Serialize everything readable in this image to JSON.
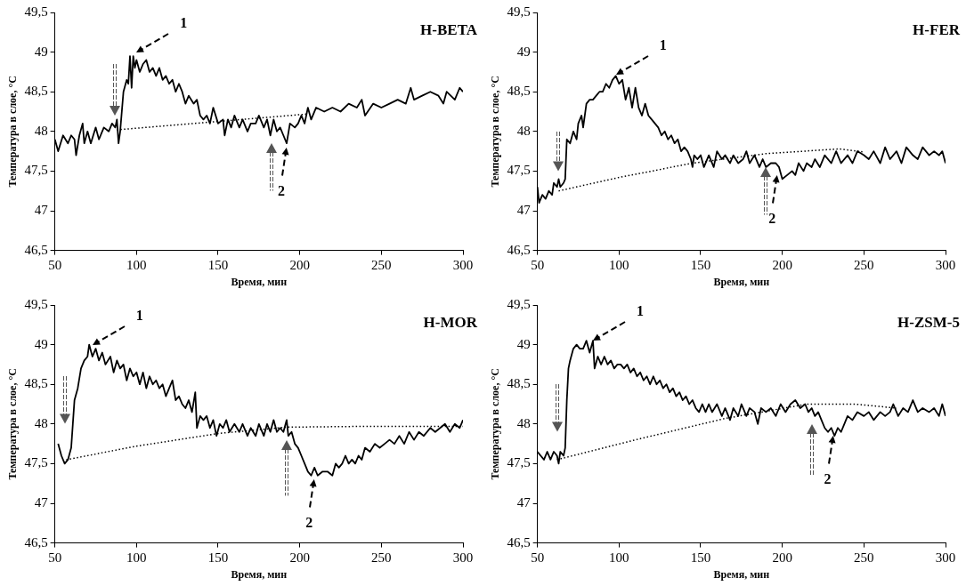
{
  "chart_data": [
    {
      "type": "line",
      "title": "H-BETA",
      "xlabel": "Время, мин",
      "ylabel": "Температура в слое, °C",
      "marker": "none",
      "xlim": [
        50,
        300
      ],
      "xticks": [
        50,
        100,
        150,
        200,
        250,
        300
      ],
      "ylim": [
        46.5,
        49.5
      ],
      "yticks": [
        {
          "value": 46.5,
          "label": "46,5"
        },
        47,
        {
          "value": 47.5,
          "label": "47,5"
        },
        48,
        {
          "value": 48.5,
          "label": "48,5"
        },
        49,
        {
          "value": 49.5,
          "label": "49,5"
        }
      ],
      "series": [
        {
          "color": "#000000",
          "line_style": "solid",
          "x": [
            50,
            52,
            55,
            58,
            60,
            62,
            63,
            65,
            67,
            68,
            70,
            72,
            75,
            77,
            80,
            83,
            85,
            87,
            88,
            89,
            90,
            92,
            94,
            95,
            96,
            97,
            98,
            99,
            100,
            102,
            104,
            106,
            108,
            110,
            112,
            114,
            116,
            118,
            120,
            122,
            124,
            126,
            128,
            130,
            132,
            135,
            137,
            139,
            141,
            143,
            145,
            147,
            150,
            153,
            154,
            156,
            158,
            160,
            163,
            165,
            168,
            170,
            173,
            175,
            178,
            180,
            182,
            184,
            186,
            188,
            190,
            192,
            194,
            197,
            199,
            201,
            203,
            205,
            207,
            210,
            215,
            220,
            225,
            230,
            235,
            238,
            240,
            245,
            250,
            255,
            260,
            265,
            268,
            270,
            275,
            280,
            285,
            288,
            290,
            295,
            298,
            300
          ],
          "values": [
            47.9,
            47.75,
            47.95,
            47.85,
            47.95,
            47.9,
            47.7,
            47.95,
            48.1,
            47.85,
            48.0,
            47.85,
            48.05,
            47.9,
            48.05,
            48.0,
            48.1,
            48.05,
            48.15,
            47.85,
            48.0,
            48.5,
            48.65,
            48.6,
            48.95,
            48.55,
            48.95,
            48.8,
            48.9,
            48.75,
            48.85,
            48.9,
            48.75,
            48.8,
            48.7,
            48.8,
            48.65,
            48.7,
            48.6,
            48.65,
            48.5,
            48.6,
            48.5,
            48.35,
            48.45,
            48.35,
            48.4,
            48.2,
            48.15,
            48.2,
            48.1,
            48.3,
            48.1,
            48.15,
            47.95,
            48.15,
            48.05,
            48.2,
            48.05,
            48.15,
            48.0,
            48.1,
            48.1,
            48.2,
            48.05,
            48.15,
            47.95,
            48.15,
            48.0,
            48.05,
            47.95,
            47.85,
            48.1,
            48.05,
            48.1,
            48.2,
            48.1,
            48.3,
            48.15,
            48.3,
            48.25,
            48.3,
            48.25,
            48.35,
            48.3,
            48.4,
            48.2,
            48.35,
            48.3,
            48.35,
            48.4,
            48.35,
            48.55,
            48.4,
            48.45,
            48.5,
            48.45,
            48.35,
            48.5,
            48.4,
            48.55,
            48.5
          ]
        },
        {
          "color": "#000000",
          "line_style": "dotted",
          "x": [
            88,
            205
          ],
          "values": [
            48.02,
            48.22
          ]
        }
      ],
      "annotations": [
        {
          "text": "1",
          "x": 100,
          "y": 49.0
        },
        {
          "text": "2",
          "x": 192,
          "y": 47.8
        }
      ]
    },
    {
      "type": "line",
      "title": "H-FER",
      "xlabel": "Время, мин",
      "ylabel": "Температура в слое, °C",
      "marker": "none",
      "xlim": [
        50,
        300
      ],
      "xticks": [
        50,
        100,
        150,
        200,
        250,
        300
      ],
      "ylim": [
        46.5,
        49.5
      ],
      "yticks": [
        {
          "value": 46.5,
          "label": "46,5"
        },
        47,
        {
          "value": 47.5,
          "label": "47,5"
        },
        48,
        {
          "value": 48.5,
          "label": "48,5"
        },
        49,
        {
          "value": 49.5,
          "label": "49,5"
        }
      ],
      "series": [
        {
          "color": "#000000",
          "line_style": "solid",
          "x": [
            50,
            51,
            53,
            55,
            57,
            59,
            60,
            62,
            63,
            64,
            66,
            67,
            68,
            70,
            72,
            74,
            75,
            77,
            78,
            80,
            82,
            84,
            86,
            88,
            90,
            92,
            94,
            96,
            98,
            100,
            102,
            104,
            106,
            108,
            110,
            112,
            114,
            116,
            118,
            120,
            122,
            124,
            126,
            128,
            130,
            132,
            134,
            136,
            138,
            140,
            142,
            144,
            145,
            146,
            148,
            150,
            152,
            155,
            158,
            160,
            163,
            165,
            168,
            170,
            173,
            176,
            178,
            180,
            183,
            186,
            188,
            190,
            193,
            196,
            198,
            200,
            203,
            206,
            208,
            210,
            213,
            215,
            218,
            220,
            223,
            226,
            230,
            233,
            236,
            240,
            243,
            246,
            250,
            253,
            256,
            260,
            263,
            266,
            270,
            273,
            276,
            280,
            283,
            286,
            290,
            293,
            296,
            298,
            300
          ],
          "values": [
            47.3,
            47.1,
            47.2,
            47.15,
            47.25,
            47.2,
            47.35,
            47.3,
            47.4,
            47.3,
            47.35,
            47.4,
            47.9,
            47.85,
            48.0,
            47.9,
            48.1,
            48.2,
            48.05,
            48.35,
            48.4,
            48.4,
            48.45,
            48.5,
            48.5,
            48.6,
            48.55,
            48.65,
            48.7,
            48.6,
            48.65,
            48.4,
            48.55,
            48.3,
            48.55,
            48.3,
            48.2,
            48.35,
            48.2,
            48.15,
            48.1,
            48.05,
            47.95,
            48.0,
            47.9,
            47.95,
            47.85,
            47.9,
            47.75,
            47.8,
            47.75,
            47.65,
            47.55,
            47.7,
            47.65,
            47.7,
            47.55,
            47.7,
            47.55,
            47.75,
            47.65,
            47.7,
            47.6,
            47.7,
            47.6,
            47.65,
            47.75,
            47.6,
            47.7,
            47.55,
            47.65,
            47.55,
            47.6,
            47.6,
            47.55,
            47.4,
            47.45,
            47.5,
            47.45,
            47.6,
            47.5,
            47.6,
            47.55,
            47.65,
            47.55,
            47.7,
            47.6,
            47.75,
            47.6,
            47.7,
            47.6,
            47.75,
            47.7,
            47.65,
            47.75,
            47.6,
            47.8,
            47.65,
            47.75,
            47.6,
            47.8,
            47.7,
            47.65,
            47.8,
            47.7,
            47.75,
            47.7,
            47.75,
            47.6
          ]
        },
        {
          "color": "#000000",
          "line_style": "dotted",
          "x": [
            63,
            100,
            145,
            190,
            235,
            250
          ],
          "values": [
            47.25,
            47.42,
            47.6,
            47.72,
            47.78,
            47.74
          ]
        }
      ],
      "annotations": [
        {
          "text": "1",
          "x": 98,
          "y": 48.72
        },
        {
          "text": "2",
          "x": 197,
          "y": 47.45
        }
      ]
    },
    {
      "type": "line",
      "title": "H-MOR",
      "xlabel": "Время, мин",
      "ylabel": "Температура в слое, °C",
      "marker": "none",
      "xlim": [
        50,
        300
      ],
      "xticks": [
        50,
        100,
        150,
        200,
        250,
        300
      ],
      "ylim": [
        46.5,
        49.5
      ],
      "yticks": [
        {
          "value": 46.5,
          "label": "46,5"
        },
        47,
        {
          "value": 47.5,
          "label": "47,5"
        },
        48,
        {
          "value": 48.5,
          "label": "48,5"
        },
        49,
        {
          "value": 49.5,
          "label": "49,5"
        }
      ],
      "series": [
        {
          "color": "#000000",
          "line_style": "solid",
          "x": [
            52,
            54,
            56,
            58,
            60,
            61,
            62,
            64,
            66,
            68,
            70,
            71,
            73,
            75,
            77,
            79,
            81,
            84,
            86,
            88,
            90,
            92,
            94,
            96,
            98,
            100,
            102,
            104,
            106,
            108,
            110,
            112,
            114,
            116,
            118,
            120,
            122,
            124,
            126,
            128,
            130,
            132,
            134,
            136,
            137,
            139,
            141,
            143,
            145,
            147,
            149,
            151,
            153,
            155,
            157,
            160,
            163,
            165,
            168,
            170,
            173,
            175,
            178,
            180,
            182,
            184,
            186,
            188,
            190,
            192,
            193,
            195,
            197,
            199,
            201,
            203,
            205,
            207,
            209,
            211,
            214,
            217,
            220,
            222,
            224,
            226,
            228,
            230,
            232,
            234,
            236,
            238,
            240,
            243,
            246,
            249,
            252,
            255,
            258,
            261,
            264,
            267,
            270,
            273,
            276,
            280,
            283,
            286,
            289,
            292,
            295,
            298,
            300
          ],
          "values": [
            47.75,
            47.6,
            47.5,
            47.55,
            47.7,
            48.0,
            48.3,
            48.45,
            48.7,
            48.8,
            48.85,
            49.0,
            48.85,
            48.95,
            48.8,
            48.9,
            48.75,
            48.85,
            48.65,
            48.8,
            48.7,
            48.75,
            48.55,
            48.7,
            48.6,
            48.65,
            48.5,
            48.65,
            48.45,
            48.6,
            48.5,
            48.55,
            48.45,
            48.5,
            48.35,
            48.45,
            48.55,
            48.3,
            48.35,
            48.25,
            48.2,
            48.3,
            48.15,
            48.4,
            47.95,
            48.1,
            48.05,
            48.1,
            47.95,
            48.05,
            47.85,
            48.0,
            47.95,
            48.05,
            47.9,
            48.0,
            47.9,
            48.0,
            47.85,
            47.95,
            47.85,
            48.0,
            47.85,
            48.0,
            47.9,
            48.05,
            47.9,
            47.95,
            47.9,
            48.05,
            47.85,
            47.9,
            47.75,
            47.7,
            47.6,
            47.5,
            47.4,
            47.35,
            47.45,
            47.35,
            47.4,
            47.4,
            47.35,
            47.5,
            47.45,
            47.5,
            47.6,
            47.5,
            47.55,
            47.5,
            47.6,
            47.55,
            47.7,
            47.65,
            47.75,
            47.7,
            47.75,
            47.8,
            47.75,
            47.85,
            47.75,
            47.9,
            47.8,
            47.9,
            47.85,
            47.95,
            47.9,
            47.95,
            48.0,
            47.9,
            48.0,
            47.95,
            48.05
          ]
        },
        {
          "color": "#000000",
          "line_style": "dotted",
          "x": [
            57,
            100,
            150,
            192,
            240,
            300
          ],
          "values": [
            47.55,
            47.72,
            47.88,
            47.96,
            47.97,
            47.97
          ]
        }
      ],
      "annotations": [
        {
          "text": "1",
          "x": 73,
          "y": 49.0
        },
        {
          "text": "2",
          "x": 209,
          "y": 47.3
        }
      ]
    },
    {
      "type": "line",
      "title": "H-ZSM-5",
      "xlabel": "Время, мин",
      "ylabel": "Температура в слое, °C",
      "marker": "none",
      "xlim": [
        50,
        300
      ],
      "xticks": [
        50,
        100,
        150,
        200,
        250,
        300
      ],
      "ylim": [
        46.5,
        49.5
      ],
      "yticks": [
        {
          "value": 46.5,
          "label": "46,5"
        },
        47,
        {
          "value": 47.5,
          "label": "47,5"
        },
        48,
        {
          "value": 48.5,
          "label": "48,5"
        },
        49,
        {
          "value": 49.5,
          "label": "49,5"
        }
      ],
      "series": [
        {
          "color": "#000000",
          "line_style": "solid",
          "x": [
            50,
            52,
            54,
            56,
            58,
            60,
            62,
            63,
            64,
            66,
            67,
            68,
            69,
            70,
            72,
            74,
            76,
            78,
            80,
            82,
            84,
            85,
            87,
            89,
            91,
            93,
            95,
            97,
            99,
            101,
            103,
            105,
            107,
            109,
            111,
            113,
            115,
            117,
            119,
            121,
            123,
            125,
            127,
            129,
            131,
            133,
            135,
            137,
            139,
            141,
            143,
            145,
            147,
            149,
            151,
            153,
            155,
            157,
            160,
            163,
            165,
            168,
            170,
            173,
            175,
            178,
            180,
            183,
            185,
            187,
            190,
            193,
            196,
            199,
            202,
            205,
            208,
            211,
            214,
            216,
            218,
            220,
            222,
            224,
            226,
            228,
            230,
            232,
            234,
            236,
            238,
            240,
            243,
            246,
            250,
            253,
            256,
            260,
            263,
            266,
            268,
            271,
            274,
            277,
            280,
            283,
            286,
            290,
            293,
            296,
            298,
            300
          ],
          "values": [
            47.65,
            47.6,
            47.55,
            47.65,
            47.55,
            47.65,
            47.6,
            47.5,
            47.65,
            47.6,
            47.7,
            48.3,
            48.7,
            48.8,
            48.95,
            49.0,
            48.95,
            48.95,
            49.05,
            48.9,
            49.05,
            48.7,
            48.85,
            48.75,
            48.85,
            48.75,
            48.8,
            48.7,
            48.75,
            48.75,
            48.7,
            48.75,
            48.65,
            48.7,
            48.6,
            48.65,
            48.55,
            48.6,
            48.5,
            48.6,
            48.5,
            48.55,
            48.45,
            48.5,
            48.4,
            48.45,
            48.35,
            48.4,
            48.3,
            48.35,
            48.25,
            48.3,
            48.2,
            48.15,
            48.25,
            48.15,
            48.25,
            48.15,
            48.25,
            48.1,
            48.2,
            48.05,
            48.2,
            48.1,
            48.25,
            48.1,
            48.2,
            48.15,
            48.0,
            48.2,
            48.15,
            48.2,
            48.1,
            48.25,
            48.15,
            48.25,
            48.3,
            48.2,
            48.25,
            48.15,
            48.2,
            48.1,
            48.15,
            48.05,
            47.95,
            47.9,
            47.95,
            47.85,
            47.95,
            47.9,
            48.0,
            48.1,
            48.05,
            48.15,
            48.1,
            48.15,
            48.05,
            48.15,
            48.1,
            48.15,
            48.25,
            48.1,
            48.2,
            48.15,
            48.3,
            48.15,
            48.2,
            48.15,
            48.2,
            48.1,
            48.25,
            48.1
          ]
        },
        {
          "color": "#000000",
          "line_style": "dotted",
          "x": [
            62,
            110,
            165,
            215,
            245,
            270
          ],
          "values": [
            47.55,
            47.8,
            48.07,
            48.25,
            48.25,
            48.2
          ]
        }
      ],
      "annotations": [
        {
          "text": "1",
          "x": 84,
          "y": 49.05
        },
        {
          "text": "2",
          "x": 231,
          "y": 47.85
        }
      ]
    }
  ]
}
